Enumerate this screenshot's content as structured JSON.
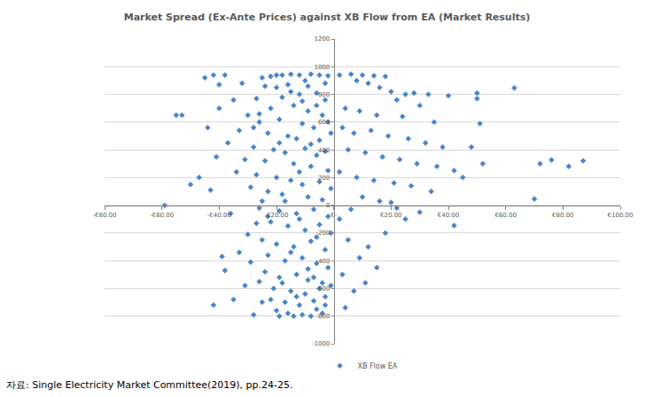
{
  "chart_data": {
    "type": "scatter",
    "title": "Market Spread (Ex-Ante Prices) against XB Flow from EA (Market Results)",
    "annotations": [
      "자료: Single Electricity Market Committee(2019), pp.24-25."
    ],
    "xlim": [
      -80,
      100
    ],
    "xticks": [
      {
        "value": -80,
        "label": "-€80.00"
      },
      {
        "value": -60,
        "label": "-€60.00"
      },
      {
        "value": -40,
        "label": "-€40.00"
      },
      {
        "value": -20,
        "label": "-€20.00"
      },
      {
        "value": 0,
        "label": "€-"
      },
      {
        "value": 20,
        "label": "€20.00"
      },
      {
        "value": 40,
        "label": "€40.00"
      },
      {
        "value": 60,
        "label": "€60.00"
      },
      {
        "value": 80,
        "label": "€80.00"
      },
      {
        "value": 100,
        "label": "€100.00"
      }
    ],
    "ylim": [
      -1000,
      1200
    ],
    "yticks": [
      -1000,
      -800,
      -600,
      -400,
      -200,
      0,
      200,
      400,
      600,
      800,
      1000,
      1200
    ],
    "grid": true,
    "legend": "bottom",
    "marker": "diamond",
    "x": [
      -20,
      -18,
      -22,
      -15,
      -12,
      -25,
      -8,
      -5,
      -2,
      -10,
      -20,
      -15,
      -12,
      -18,
      -6,
      -3,
      -22,
      -14,
      -9,
      -4,
      -26,
      -19,
      -11,
      -7,
      -2,
      -23,
      -16,
      -13,
      -5,
      -1,
      -28,
      -21,
      -17,
      -10,
      -6,
      -3,
      -24,
      -14,
      -8,
      -2,
      -27,
      -20,
      -15,
      -11,
      -5,
      -1,
      -23,
      -18,
      -9,
      -4,
      -26,
      -19,
      -13,
      -7,
      -2,
      -22,
      -16,
      -10,
      -5,
      -1,
      -25,
      -20,
      -14,
      -8,
      -3,
      -23,
      -17,
      -11,
      -6,
      -2,
      -24,
      -19,
      -13,
      -9,
      -4,
      -21,
      -15,
      -10,
      -5,
      -1,
      -22,
      -17,
      -12,
      -7,
      -3,
      -20,
      -16,
      -11,
      -6,
      -14,
      -32,
      -35,
      -30,
      -33,
      -37,
      -31,
      -34,
      -29,
      -36,
      -30,
      -33,
      -38,
      -31,
      -35,
      -28,
      -40,
      -42,
      -38,
      -45,
      -40,
      -44,
      -41,
      -43,
      -39,
      -42,
      -55,
      -53,
      -59,
      -50,
      -47,
      2,
      6,
      10,
      14,
      18,
      8,
      12,
      16,
      20,
      25,
      28,
      33,
      22,
      30,
      4,
      9,
      15,
      24,
      35,
      40,
      3,
      7,
      13,
      19,
      26,
      32,
      38,
      5,
      11,
      17,
      23,
      29,
      36,
      42,
      2,
      8,
      14,
      21,
      27,
      34,
      45,
      50,
      50,
      51,
      48,
      52,
      63,
      76,
      82,
      87,
      70,
      72,
      42,
      2,
      5,
      9,
      3,
      7,
      4,
      12,
      15,
      11,
      18,
      25,
      30,
      22,
      6,
      10,
      16,
      20,
      -24,
      -16,
      -9,
      -3,
      -27,
      -11,
      -6,
      -19,
      -8,
      -12,
      -17,
      -23,
      -12,
      -6,
      -15,
      -9,
      -18,
      -7,
      -13,
      -3,
      -8,
      -19,
      -4,
      -25,
      -26,
      -29,
      -27,
      -25,
      -28,
      -26
    ],
    "series": [
      {
        "name": "XB Flow EA",
        "color": "#4a86c8",
        "values": [
          940,
          940,
          930,
          945,
          940,
          920,
          945,
          940,
          935,
          900,
          850,
          820,
          800,
          780,
          810,
          760,
          700,
          720,
          680,
          650,
          600,
          620,
          590,
          560,
          600,
          520,
          500,
          480,
          470,
          520,
          420,
          400,
          380,
          410,
          360,
          390,
          320,
          300,
          280,
          250,
          220,
          200,
          180,
          150,
          170,
          120,
          100,
          80,
          60,
          40,
          -20,
          -40,
          -60,
          -30,
          -80,
          -120,
          -150,
          -180,
          -140,
          -200,
          -250,
          -280,
          -300,
          -260,
          -320,
          -360,
          -400,
          -380,
          -420,
          -450,
          -480,
          -520,
          -500,
          -540,
          -560,
          -600,
          -620,
          -640,
          -600,
          -580,
          -680,
          -700,
          -720,
          -690,
          -660,
          -760,
          -780,
          -790,
          -750,
          -800,
          880,
          760,
          650,
          540,
          450,
          330,
          240,
          130,
          -60,
          -210,
          -340,
          -470,
          -580,
          -680,
          -790,
          870,
          940,
          940,
          920,
          700,
          560,
          350,
          110,
          -370,
          -720,
          650,
          650,
          0,
          150,
          200,
          940,
          945,
          940,
          935,
          930,
          900,
          880,
          850,
          820,
          800,
          810,
          800,
          760,
          720,
          700,
          680,
          650,
          640,
          600,
          790,
          560,
          520,
          540,
          500,
          480,
          450,
          420,
          400,
          380,
          350,
          330,
          300,
          280,
          250,
          240,
          200,
          180,
          160,
          140,
          100,
          200,
          810,
          770,
          590,
          420,
          300,
          846,
          327,
          280,
          320,
          45,
          300,
          -147,
          -100,
          -250,
          -380,
          -500,
          -620,
          -740,
          -300,
          -450,
          -560,
          -200,
          -100,
          -50,
          -20,
          -30,
          60,
          30,
          20,
          860,
          870,
          860,
          880,
          770,
          750,
          720,
          450,
          440,
          240,
          30,
          -80,
          -100,
          -230,
          -340,
          -460,
          -560,
          -520,
          -660,
          -720,
          -800,
          -800,
          -780,
          -700,
          -550,
          -410,
          -130,
          30,
          560,
          660
        ]
      }
    ]
  }
}
